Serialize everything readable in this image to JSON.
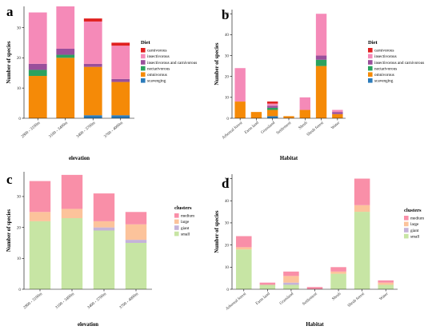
{
  "figure": {
    "panel_labels": [
      "a",
      "b",
      "c",
      "d"
    ]
  },
  "chart_data": [
    {
      "type": "bar",
      "stacked": true,
      "panel": "a",
      "categories": [
        "2800 - 3100m",
        "3100 - 3400m",
        "3400 - 3700m",
        "3700 - 4000m"
      ],
      "xlabel": "elevation",
      "ylabel": "Number of species",
      "ylim": [
        0,
        37
      ],
      "yticks": [
        0,
        10,
        20,
        30
      ],
      "grid": false,
      "legend_title": "Diet",
      "legend_position": "right",
      "series": [
        {
          "name": "scavenging",
          "color": "#2b7bba",
          "values": [
            0,
            0,
            1,
            1
          ]
        },
        {
          "name": "omnivorous",
          "color": "#f58a07",
          "values": [
            14,
            20,
            16,
            11
          ]
        },
        {
          "name": "nectarivorous",
          "color": "#2ca25f",
          "values": [
            2,
            1,
            0,
            0
          ]
        },
        {
          "name": "insectivorous and carnivorous",
          "color": "#9a4f9b",
          "values": [
            2,
            2,
            1,
            1
          ]
        },
        {
          "name": "insectivorous",
          "color": "#f58ab8",
          "values": [
            17,
            14,
            14,
            11
          ]
        },
        {
          "name": "carnivorous",
          "color": "#e0201f",
          "values": [
            0,
            0,
            1,
            1
          ]
        }
      ]
    },
    {
      "type": "bar",
      "stacked": true,
      "panel": "b",
      "categories": [
        "Arboreal forest",
        "Farm land",
        "Grassland",
        "Settlement",
        "Shrub",
        "Shrub forest",
        "Water"
      ],
      "xlabel": "Habitat",
      "ylabel": "Number of species",
      "ylim": [
        0,
        52
      ],
      "yticks": [
        0,
        10,
        20,
        30,
        40,
        50
      ],
      "grid": false,
      "legend_title": "Diet",
      "legend_position": "right",
      "series": [
        {
          "name": "scavenging",
          "color": "#2b7bba",
          "values": [
            0,
            0,
            1,
            0,
            0,
            0,
            0
          ]
        },
        {
          "name": "omnivorous",
          "color": "#f58a07",
          "values": [
            8,
            3,
            3,
            1,
            4,
            25,
            2
          ]
        },
        {
          "name": "nectarivorous",
          "color": "#2ca25f",
          "values": [
            0,
            0,
            1,
            0,
            0,
            3,
            0
          ]
        },
        {
          "name": "insectivorous and carnivorous",
          "color": "#9a4f9b",
          "values": [
            0,
            0,
            1,
            0,
            0,
            2,
            1
          ]
        },
        {
          "name": "insectivorous",
          "color": "#f58ab8",
          "values": [
            16,
            0,
            1,
            0,
            6,
            20,
            1
          ]
        },
        {
          "name": "carnivorous",
          "color": "#e0201f",
          "values": [
            0,
            0,
            1,
            0,
            0,
            0,
            0
          ]
        }
      ]
    },
    {
      "type": "bar",
      "stacked": true,
      "panel": "c",
      "categories": [
        "2800 - 3100m",
        "3100 - 3400m",
        "3400 - 3700m",
        "3700 - 4000m"
      ],
      "xlabel": "elevation",
      "ylabel": "Number of species",
      "ylim": [
        0,
        38
      ],
      "yticks": [
        0,
        10,
        20,
        30
      ],
      "grid": false,
      "legend_title": "clusters",
      "legend_position": "right",
      "series": [
        {
          "name": "small",
          "color": "#c7e5a4",
          "values": [
            22,
            23,
            19,
            15
          ]
        },
        {
          "name": "giant",
          "color": "#c5b3d9",
          "values": [
            0,
            0,
            1,
            1
          ]
        },
        {
          "name": "large",
          "color": "#fcc39b",
          "values": [
            3,
            3,
            2,
            5
          ]
        },
        {
          "name": "medium",
          "color": "#f98fa8",
          "values": [
            10,
            11,
            9,
            4
          ]
        }
      ]
    },
    {
      "type": "bar",
      "stacked": true,
      "panel": "d",
      "categories": [
        "Arboreal forest",
        "Farm land",
        "Grassland",
        "Settlement",
        "Shrub",
        "Shrub forest",
        "Water"
      ],
      "xlabel": "Habitat",
      "ylabel": "Number of species",
      "ylim": [
        0,
        52
      ],
      "yticks": [
        0,
        10,
        20,
        30,
        40,
        50
      ],
      "grid": false,
      "legend_title": "clusters",
      "legend_position": "right",
      "series": [
        {
          "name": "small",
          "color": "#c7e5a4",
          "values": [
            18,
            2,
            2,
            0,
            7,
            35,
            2
          ]
        },
        {
          "name": "giant",
          "color": "#c5b3d9",
          "values": [
            0,
            0,
            1,
            0,
            0,
            0,
            0
          ]
        },
        {
          "name": "large",
          "color": "#fcc39b",
          "values": [
            1,
            0,
            3,
            0,
            1,
            3,
            1
          ]
        },
        {
          "name": "medium",
          "color": "#f98fa8",
          "values": [
            5,
            1,
            2,
            1,
            2,
            12,
            1
          ]
        }
      ]
    }
  ]
}
